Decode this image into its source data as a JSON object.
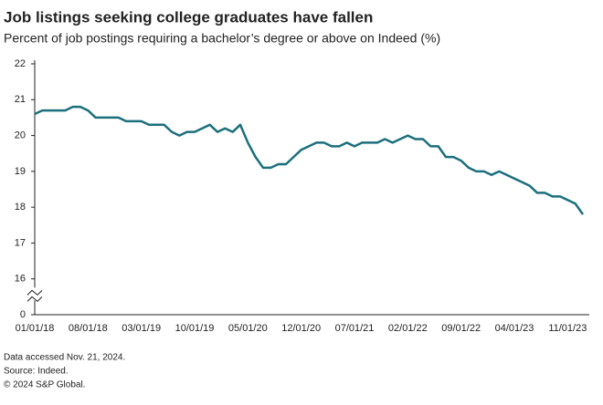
{
  "chart_data": {
    "type": "line",
    "title": "Job listings seeking college graduates have fallen",
    "subtitle": "Percent of job postings requiring a bachelor’s degree or above on Indeed (%)",
    "categories": [
      "01/01/18",
      null,
      null,
      null,
      null,
      null,
      null,
      "08/01/18",
      null,
      null,
      null,
      null,
      null,
      null,
      "03/01/19",
      null,
      null,
      null,
      null,
      null,
      null,
      "10/01/19",
      null,
      null,
      null,
      null,
      null,
      null,
      "05/01/20",
      null,
      null,
      null,
      null,
      null,
      null,
      "12/01/20",
      null,
      null,
      null,
      null,
      null,
      null,
      "07/01/21",
      null,
      null,
      null,
      null,
      null,
      null,
      "02/01/22",
      null,
      null,
      null,
      null,
      null,
      null,
      "09/01/22",
      null,
      null,
      null,
      null,
      null,
      null,
      "04/01/23",
      null,
      null,
      null,
      null,
      null,
      null,
      "11/01/23",
      null,
      null
    ],
    "series": [
      {
        "name": "Bachelor's degree or above",
        "color": "#1b6f7c",
        "values": [
          20.6,
          20.7,
          20.7,
          20.7,
          20.7,
          20.8,
          20.8,
          20.7,
          20.5,
          20.5,
          20.5,
          20.5,
          20.4,
          20.4,
          20.4,
          20.3,
          20.3,
          20.3,
          20.1,
          20.0,
          20.1,
          20.1,
          20.2,
          20.3,
          20.1,
          20.2,
          20.1,
          20.3,
          19.8,
          19.4,
          19.1,
          19.1,
          19.2,
          19.2,
          19.4,
          19.6,
          19.7,
          19.8,
          19.8,
          19.7,
          19.7,
          19.8,
          19.7,
          19.8,
          19.8,
          19.8,
          19.9,
          19.8,
          19.9,
          20.0,
          19.9,
          19.9,
          19.7,
          19.7,
          19.4,
          19.4,
          19.3,
          19.1,
          19.0,
          19.0,
          18.9,
          19.0,
          18.9,
          18.8,
          18.7,
          18.6,
          18.4,
          18.4,
          18.3,
          18.3,
          18.2,
          18.1,
          17.8
        ]
      }
    ],
    "ylim": [
      0,
      22
    ],
    "yticks": [
      0,
      16,
      17,
      18,
      19,
      20,
      21,
      22
    ],
    "y_break": [
      0,
      16
    ],
    "grid": false,
    "notes": [
      "Data accessed Nov. 21, 2024.",
      "Source: Indeed.",
      "© 2024 S&P Global."
    ]
  }
}
